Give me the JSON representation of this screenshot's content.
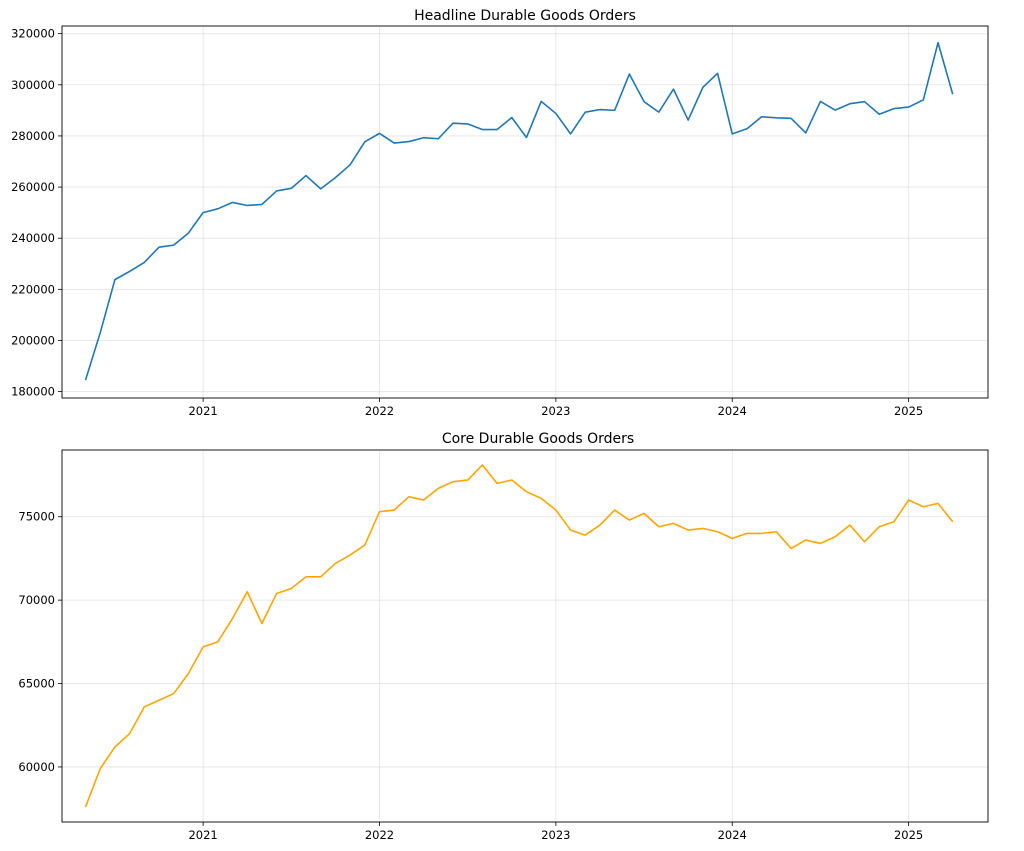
{
  "chart_data": [
    {
      "type": "line",
      "title": "Headline Durable Goods Orders",
      "xlabel": "",
      "ylabel": "",
      "color": "#1f77b4",
      "grid": true,
      "ylim": [
        177500,
        323000
      ],
      "xlim": [
        2020.2,
        2025.45
      ],
      "xticks": [
        2021,
        2022,
        2023,
        2024,
        2025
      ],
      "xtick_labels": [
        "2021",
        "2022",
        "2023",
        "2024",
        "2025"
      ],
      "yticks": [
        180000,
        200000,
        220000,
        240000,
        260000,
        280000,
        300000,
        320000
      ],
      "ytick_labels": [
        "180000",
        "200000",
        "220000",
        "240000",
        "260000",
        "280000",
        "300000",
        "320000"
      ],
      "start": {
        "year": 2020,
        "month": 5
      },
      "values": [
        184500,
        203000,
        223800,
        227000,
        230500,
        236500,
        237300,
        242000,
        250000,
        251500,
        254000,
        252800,
        253200,
        258500,
        259500,
        264500,
        259300,
        263700,
        268700,
        277700,
        281000,
        277200,
        277800,
        279300,
        278900,
        285000,
        284700,
        282500,
        282500,
        287200,
        279400,
        293500,
        288800,
        280800,
        289300,
        290300,
        290000,
        304200,
        293400,
        289300,
        298300,
        286200,
        299000,
        304500,
        280800,
        282800,
        287500,
        287100,
        286900,
        281200,
        293500,
        290100,
        292600,
        293400,
        288500,
        290700,
        291300,
        294100,
        316500,
        296300
      ]
    },
    {
      "type": "line",
      "title": "Core Durable Goods Orders",
      "xlabel": "",
      "ylabel": "",
      "color": "#ffa500",
      "grid": true,
      "ylim": [
        56700,
        79000
      ],
      "xlim": [
        2020.2,
        2025.45
      ],
      "xticks": [
        2021,
        2022,
        2023,
        2024,
        2025
      ],
      "xtick_labels": [
        "2021",
        "2022",
        "2023",
        "2024",
        "2025"
      ],
      "yticks": [
        60000,
        65000,
        70000,
        75000
      ],
      "ytick_labels": [
        "60000",
        "65000",
        "70000",
        "75000"
      ],
      "start": {
        "year": 2020,
        "month": 5
      },
      "values": [
        57600,
        59900,
        61200,
        62000,
        63600,
        64000,
        64400,
        65600,
        67200,
        67500,
        68900,
        70500,
        68600,
        70400,
        70700,
        71400,
        71400,
        72200,
        72700,
        73300,
        75300,
        75400,
        76200,
        76000,
        76700,
        77100,
        77200,
        78100,
        77000,
        77200,
        76500,
        76100,
        75400,
        74200,
        73900,
        74500,
        75400,
        74800,
        75200,
        74400,
        74600,
        74200,
        74300,
        74100,
        73700,
        74000,
        74000,
        74100,
        73100,
        73600,
        73400,
        73800,
        74500,
        73500,
        74400,
        74700,
        76000,
        75600,
        75800,
        74700
      ]
    }
  ]
}
